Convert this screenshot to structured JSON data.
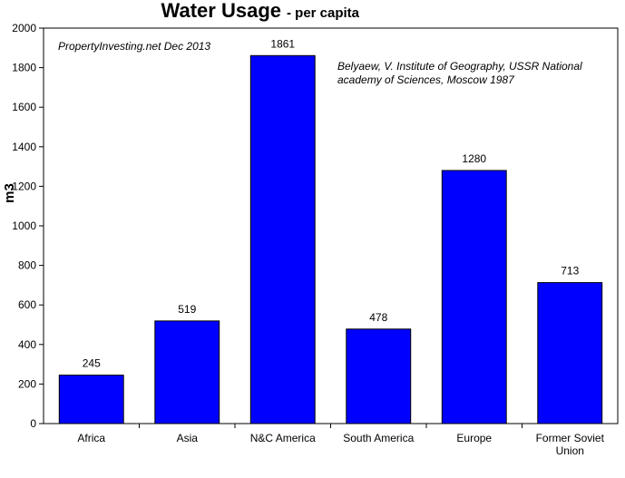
{
  "chart_data": {
    "type": "bar",
    "title": "Water Usage",
    "subtitle": "- per capita",
    "ylabel": "m3",
    "xlabel": "",
    "categories": [
      "Africa",
      "Asia",
      "N&C America",
      "South America",
      "Europe",
      "Former Soviet Union"
    ],
    "category_lines": [
      [
        "Africa"
      ],
      [
        "Asia"
      ],
      [
        "N&C America"
      ],
      [
        "South America"
      ],
      [
        "Europe"
      ],
      [
        "Former Soviet",
        "Union"
      ]
    ],
    "values": [
      245,
      519,
      1861,
      478,
      1280,
      713
    ],
    "data_labels": [
      "245",
      "519",
      "1861",
      "478",
      "1280",
      "713"
    ],
    "ylim": [
      0,
      2000
    ],
    "yticks": [
      0,
      200,
      400,
      600,
      800,
      1000,
      1200,
      1400,
      1600,
      1800,
      2000
    ],
    "grid": false,
    "legend": "none",
    "bar_color": "#0000ff",
    "annotations": {
      "source_left": "PropertyInvesting.net  Dec 2013",
      "source_right_line1": "Belyaew,  V. Institute of Geography, USSR National",
      "source_right_line2": "academy of Sciences, Moscow 1987"
    }
  }
}
